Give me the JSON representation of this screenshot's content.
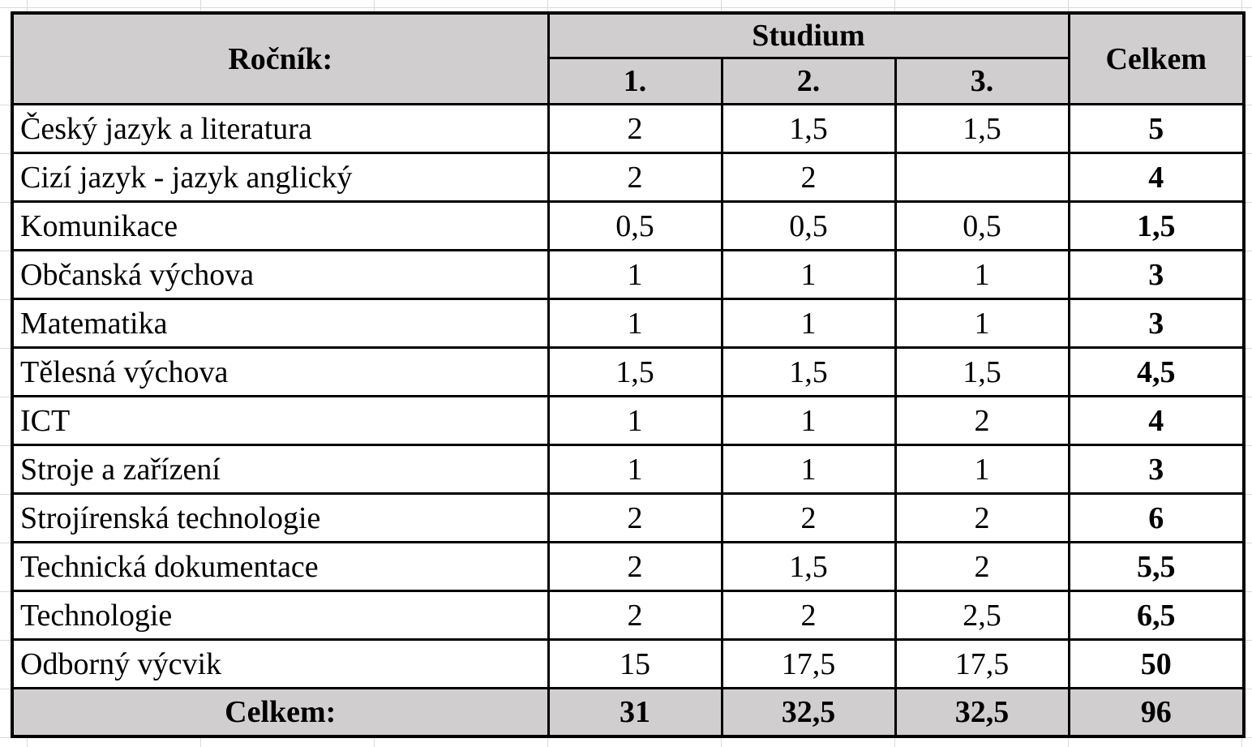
{
  "header": {
    "grade_label": "Ročník:",
    "study_label": "Studium",
    "years": [
      "1.",
      "2.",
      "3."
    ],
    "total_label": "Celkem"
  },
  "rows": [
    {
      "subject": "Český jazyk a literatura",
      "y1": "2",
      "y2": "1,5",
      "y3": "1,5",
      "total": "5"
    },
    {
      "subject": "Cizí jazyk - jazyk anglický",
      "y1": "2",
      "y2": "2",
      "y3": "",
      "total": "4"
    },
    {
      "subject": "Komunikace",
      "y1": "0,5",
      "y2": "0,5",
      "y3": "0,5",
      "total": "1,5"
    },
    {
      "subject": "Občanská výchova",
      "y1": "1",
      "y2": "1",
      "y3": "1",
      "total": "3"
    },
    {
      "subject": "Matematika",
      "y1": "1",
      "y2": "1",
      "y3": "1",
      "total": "3"
    },
    {
      "subject": "Tělesná výchova",
      "y1": "1,5",
      "y2": "1,5",
      "y3": "1,5",
      "total": "4,5"
    },
    {
      "subject": "ICT",
      "y1": "1",
      "y2": "1",
      "y3": "2",
      "total": "4"
    },
    {
      "subject": "Stroje a zařízení",
      "y1": "1",
      "y2": "1",
      "y3": "1",
      "total": "3"
    },
    {
      "subject": "Strojírenská technologie",
      "y1": "2",
      "y2": "2",
      "y3": "2",
      "total": "6"
    },
    {
      "subject": "Technická dokumentace",
      "y1": "2",
      "y2": "1,5",
      "y3": "2",
      "total": "5,5"
    },
    {
      "subject": "Technologie",
      "y1": "2",
      "y2": "2",
      "y3": "2,5",
      "total": "6,5"
    },
    {
      "subject": "Odborný výcvik",
      "y1": "15",
      "y2": "17,5",
      "y3": "17,5",
      "total": "50"
    }
  ],
  "footer": {
    "label": "Celkem:",
    "y1": "31",
    "y2": "32,5",
    "y3": "32,5",
    "total": "96"
  },
  "colors": {
    "header_bg": "#d0cece",
    "border": "#000000"
  }
}
